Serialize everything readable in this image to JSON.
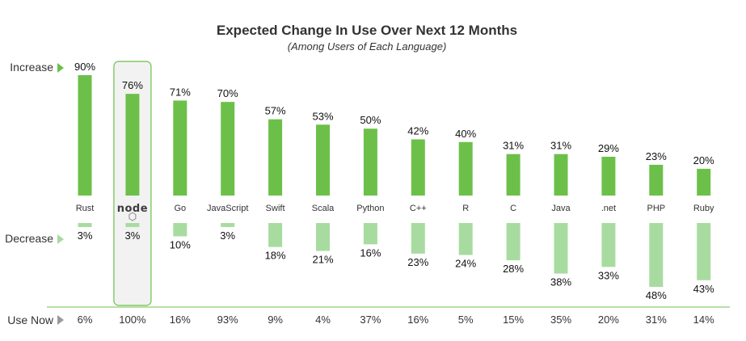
{
  "chart_data": {
    "type": "bar",
    "title": "Expected Change In Use Over Next 12 Months",
    "subtitle": "(Among Users of Each Language)",
    "categories": [
      "Rust",
      "node",
      "Go",
      "JavaScript",
      "Swift",
      "Scala",
      "Python",
      "C++",
      "R",
      "C",
      "Java",
      ".net",
      "PHP",
      "Ruby"
    ],
    "series": [
      {
        "name": "Increase",
        "values": [
          90,
          76,
          71,
          70,
          57,
          53,
          50,
          42,
          40,
          31,
          31,
          29,
          23,
          20
        ],
        "color": "#6cc04a"
      },
      {
        "name": "Decrease",
        "values": [
          3,
          3,
          10,
          3,
          18,
          21,
          16,
          23,
          24,
          28,
          38,
          33,
          48,
          43
        ],
        "color": "#a8dba0"
      }
    ],
    "use_now": {
      "label": "Use Now",
      "values": [
        6,
        100,
        16,
        93,
        9,
        4,
        37,
        16,
        5,
        15,
        35,
        20,
        31,
        14
      ]
    },
    "value_suffix": "%",
    "highlighted_category": "node",
    "accent_color": "#6cc04a",
    "arrow_gray": "#999999"
  }
}
